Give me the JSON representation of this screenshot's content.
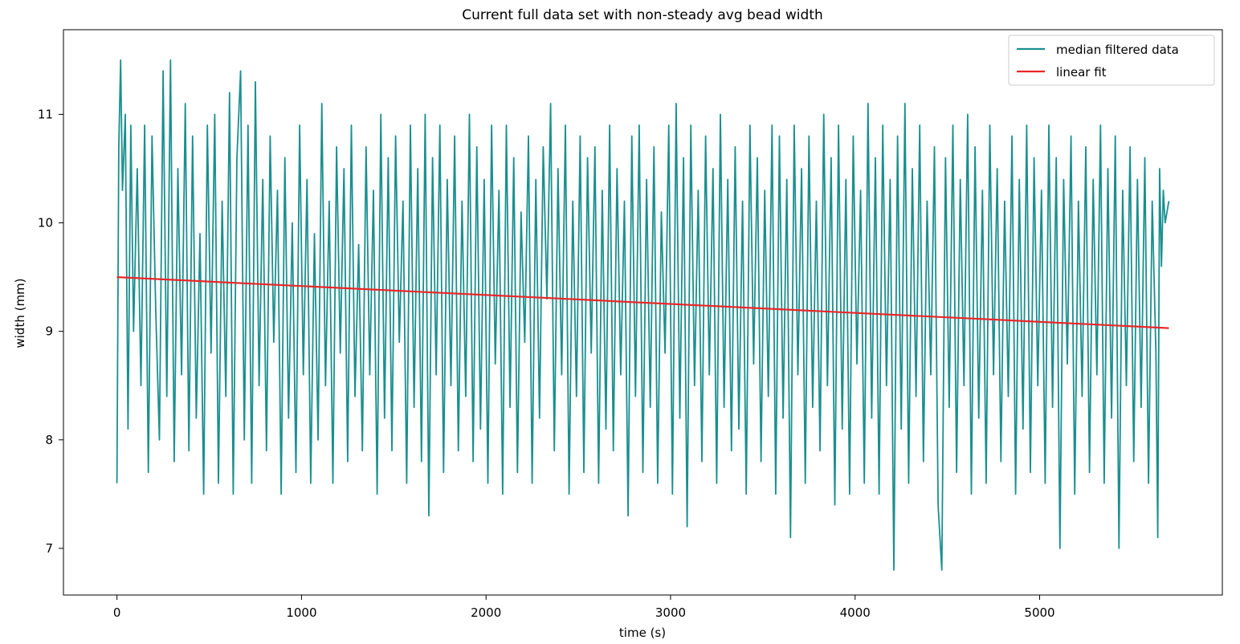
{
  "chart_data": {
    "type": "line",
    "title": "Current full data set with non-steady avg bead width",
    "xlabel": "time (s)",
    "ylabel": "width (mm)",
    "xlim": [
      -290,
      5990
    ],
    "ylim": [
      6.57,
      11.78
    ],
    "xticks": [
      0,
      1000,
      2000,
      3000,
      4000,
      5000
    ],
    "yticks": [
      7,
      8,
      9,
      10,
      11
    ],
    "xtick_labels": [
      "0",
      "1000",
      "2000",
      "3000",
      "4000",
      "5000"
    ],
    "ytick_labels": [
      "7",
      "8",
      "9",
      "10",
      "11"
    ],
    "grid": false,
    "legend_position": "top-right",
    "series": [
      {
        "name": "median filtered data",
        "color": "#1a8f8f",
        "x_range": [
          0,
          5700
        ],
        "approx_min": 6.8,
        "approx_max": 11.55,
        "approx_mean": 9.28,
        "points": [
          [
            0,
            7.6
          ],
          [
            10,
            10.7
          ],
          [
            20,
            11.5
          ],
          [
            30,
            10.3
          ],
          [
            45,
            11.0
          ],
          [
            60,
            8.1
          ],
          [
            75,
            10.9
          ],
          [
            90,
            9.0
          ],
          [
            110,
            10.5
          ],
          [
            130,
            8.5
          ],
          [
            150,
            10.9
          ],
          [
            170,
            7.7
          ],
          [
            190,
            10.8
          ],
          [
            210,
            9.2
          ],
          [
            230,
            8.0
          ],
          [
            250,
            11.4
          ],
          [
            270,
            8.4
          ],
          [
            290,
            11.5
          ],
          [
            310,
            7.8
          ],
          [
            330,
            10.5
          ],
          [
            350,
            8.6
          ],
          [
            370,
            11.1
          ],
          [
            390,
            7.9
          ],
          [
            410,
            10.8
          ],
          [
            430,
            8.2
          ],
          [
            450,
            9.9
          ],
          [
            470,
            7.5
          ],
          [
            490,
            10.9
          ],
          [
            510,
            8.8
          ],
          [
            530,
            11.0
          ],
          [
            550,
            7.6
          ],
          [
            570,
            10.2
          ],
          [
            590,
            8.4
          ],
          [
            610,
            11.2
          ],
          [
            630,
            7.5
          ],
          [
            650,
            10.6
          ],
          [
            670,
            11.4
          ],
          [
            690,
            8.0
          ],
          [
            710,
            10.9
          ],
          [
            730,
            7.6
          ],
          [
            750,
            11.3
          ],
          [
            770,
            8.5
          ],
          [
            790,
            10.4
          ],
          [
            810,
            7.9
          ],
          [
            830,
            10.8
          ],
          [
            850,
            8.9
          ],
          [
            870,
            10.3
          ],
          [
            890,
            7.5
          ],
          [
            910,
            10.6
          ],
          [
            930,
            8.2
          ],
          [
            950,
            10.0
          ],
          [
            970,
            7.7
          ],
          [
            990,
            10.9
          ],
          [
            1010,
            8.6
          ],
          [
            1030,
            10.4
          ],
          [
            1050,
            7.6
          ],
          [
            1070,
            9.9
          ],
          [
            1090,
            8.0
          ],
          [
            1110,
            11.1
          ],
          [
            1130,
            8.5
          ],
          [
            1150,
            10.2
          ],
          [
            1170,
            7.6
          ],
          [
            1190,
            10.7
          ],
          [
            1210,
            8.8
          ],
          [
            1230,
            10.5
          ],
          [
            1250,
            7.8
          ],
          [
            1270,
            10.9
          ],
          [
            1290,
            8.4
          ],
          [
            1310,
            9.8
          ],
          [
            1330,
            7.9
          ],
          [
            1350,
            10.7
          ],
          [
            1370,
            8.6
          ],
          [
            1390,
            10.3
          ],
          [
            1410,
            7.5
          ],
          [
            1430,
            11.0
          ],
          [
            1450,
            8.2
          ],
          [
            1470,
            10.6
          ],
          [
            1490,
            7.9
          ],
          [
            1510,
            10.8
          ],
          [
            1530,
            8.9
          ],
          [
            1550,
            10.2
          ],
          [
            1570,
            7.6
          ],
          [
            1590,
            10.9
          ],
          [
            1610,
            8.3
          ],
          [
            1630,
            10.5
          ],
          [
            1650,
            7.8
          ],
          [
            1670,
            11.0
          ],
          [
            1690,
            7.3
          ],
          [
            1710,
            10.6
          ],
          [
            1730,
            8.6
          ],
          [
            1750,
            10.9
          ],
          [
            1770,
            7.7
          ],
          [
            1790,
            10.4
          ],
          [
            1810,
            8.5
          ],
          [
            1830,
            10.8
          ],
          [
            1850,
            7.9
          ],
          [
            1870,
            10.2
          ],
          [
            1890,
            8.4
          ],
          [
            1910,
            11.0
          ],
          [
            1930,
            7.8
          ],
          [
            1950,
            10.7
          ],
          [
            1970,
            8.1
          ],
          [
            1990,
            10.4
          ],
          [
            2010,
            7.6
          ],
          [
            2030,
            10.9
          ],
          [
            2050,
            8.7
          ],
          [
            2070,
            10.3
          ],
          [
            2090,
            7.5
          ],
          [
            2110,
            10.9
          ],
          [
            2130,
            8.3
          ],
          [
            2150,
            10.6
          ],
          [
            2170,
            7.7
          ],
          [
            2190,
            10.1
          ],
          [
            2210,
            8.9
          ],
          [
            2230,
            10.8
          ],
          [
            2250,
            7.6
          ],
          [
            2270,
            10.4
          ],
          [
            2290,
            8.2
          ],
          [
            2310,
            10.7
          ],
          [
            2330,
            9.3
          ],
          [
            2350,
            11.1
          ],
          [
            2370,
            7.9
          ],
          [
            2390,
            10.5
          ],
          [
            2410,
            8.6
          ],
          [
            2430,
            10.9
          ],
          [
            2450,
            7.5
          ],
          [
            2470,
            10.2
          ],
          [
            2490,
            8.4
          ],
          [
            2510,
            10.8
          ],
          [
            2530,
            7.7
          ],
          [
            2550,
            10.6
          ],
          [
            2570,
            8.8
          ],
          [
            2590,
            10.7
          ],
          [
            2610,
            7.6
          ],
          [
            2630,
            10.3
          ],
          [
            2650,
            8.1
          ],
          [
            2670,
            10.9
          ],
          [
            2690,
            7.9
          ],
          [
            2710,
            10.5
          ],
          [
            2730,
            8.6
          ],
          [
            2750,
            10.2
          ],
          [
            2770,
            7.3
          ],
          [
            2790,
            10.8
          ],
          [
            2810,
            8.4
          ],
          [
            2830,
            10.9
          ],
          [
            2850,
            7.7
          ],
          [
            2870,
            10.4
          ],
          [
            2890,
            8.3
          ],
          [
            2910,
            10.7
          ],
          [
            2930,
            7.6
          ],
          [
            2950,
            10.1
          ],
          [
            2970,
            8.8
          ],
          [
            2990,
            10.9
          ],
          [
            3010,
            7.5
          ],
          [
            3030,
            11.1
          ],
          [
            3050,
            8.2
          ],
          [
            3070,
            10.6
          ],
          [
            3090,
            7.2
          ],
          [
            3110,
            10.9
          ],
          [
            3130,
            8.5
          ],
          [
            3150,
            10.3
          ],
          [
            3170,
            7.8
          ],
          [
            3190,
            10.8
          ],
          [
            3210,
            8.6
          ],
          [
            3230,
            10.5
          ],
          [
            3250,
            7.6
          ],
          [
            3270,
            11.0
          ],
          [
            3290,
            8.3
          ],
          [
            3310,
            10.4
          ],
          [
            3330,
            7.9
          ],
          [
            3350,
            10.7
          ],
          [
            3370,
            8.1
          ],
          [
            3390,
            10.2
          ],
          [
            3410,
            7.5
          ],
          [
            3430,
            10.9
          ],
          [
            3450,
            8.7
          ],
          [
            3470,
            10.6
          ],
          [
            3490,
            7.8
          ],
          [
            3510,
            10.3
          ],
          [
            3530,
            8.4
          ],
          [
            3550,
            10.9
          ],
          [
            3570,
            7.5
          ],
          [
            3590,
            10.8
          ],
          [
            3610,
            8.2
          ],
          [
            3630,
            10.4
          ],
          [
            3650,
            7.1
          ],
          [
            3670,
            10.9
          ],
          [
            3690,
            8.6
          ],
          [
            3710,
            10.5
          ],
          [
            3730,
            7.6
          ],
          [
            3750,
            10.8
          ],
          [
            3770,
            8.3
          ],
          [
            3790,
            10.2
          ],
          [
            3810,
            7.9
          ],
          [
            3830,
            11.0
          ],
          [
            3850,
            8.5
          ],
          [
            3870,
            10.6
          ],
          [
            3890,
            7.4
          ],
          [
            3910,
            10.9
          ],
          [
            3930,
            8.1
          ],
          [
            3950,
            10.4
          ],
          [
            3970,
            7.5
          ],
          [
            3990,
            10.8
          ],
          [
            4010,
            8.7
          ],
          [
            4030,
            10.3
          ],
          [
            4050,
            7.6
          ],
          [
            4070,
            11.1
          ],
          [
            4090,
            8.2
          ],
          [
            4110,
            10.6
          ],
          [
            4130,
            7.5
          ],
          [
            4150,
            10.9
          ],
          [
            4170,
            8.5
          ],
          [
            4190,
            10.4
          ],
          [
            4210,
            6.8
          ],
          [
            4230,
            10.8
          ],
          [
            4250,
            8.1
          ],
          [
            4270,
            11.1
          ],
          [
            4290,
            7.6
          ],
          [
            4310,
            10.5
          ],
          [
            4330,
            8.4
          ],
          [
            4350,
            10.9
          ],
          [
            4370,
            7.8
          ],
          [
            4390,
            10.2
          ],
          [
            4410,
            8.6
          ],
          [
            4430,
            10.7
          ],
          [
            4450,
            7.4
          ],
          [
            4470,
            6.8
          ],
          [
            4490,
            10.6
          ],
          [
            4510,
            8.3
          ],
          [
            4530,
            10.9
          ],
          [
            4550,
            7.7
          ],
          [
            4570,
            10.4
          ],
          [
            4590,
            8.5
          ],
          [
            4610,
            11.0
          ],
          [
            4630,
            7.5
          ],
          [
            4650,
            10.7
          ],
          [
            4670,
            8.2
          ],
          [
            4690,
            10.3
          ],
          [
            4710,
            7.6
          ],
          [
            4730,
            10.9
          ],
          [
            4750,
            8.6
          ],
          [
            4770,
            10.5
          ],
          [
            4790,
            7.8
          ],
          [
            4810,
            10.2
          ],
          [
            4830,
            8.4
          ],
          [
            4850,
            10.8
          ],
          [
            4870,
            7.5
          ],
          [
            4890,
            10.4
          ],
          [
            4910,
            8.1
          ],
          [
            4930,
            10.9
          ],
          [
            4950,
            7.7
          ],
          [
            4970,
            10.6
          ],
          [
            4990,
            8.5
          ],
          [
            5010,
            10.3
          ],
          [
            5030,
            7.6
          ],
          [
            5050,
            10.9
          ],
          [
            5070,
            8.3
          ],
          [
            5090,
            10.6
          ],
          [
            5110,
            7.0
          ],
          [
            5130,
            10.4
          ],
          [
            5150,
            8.7
          ],
          [
            5170,
            10.8
          ],
          [
            5190,
            7.5
          ],
          [
            5210,
            10.2
          ],
          [
            5230,
            8.4
          ],
          [
            5250,
            10.7
          ],
          [
            5270,
            7.7
          ],
          [
            5290,
            10.4
          ],
          [
            5310,
            8.6
          ],
          [
            5330,
            10.9
          ],
          [
            5350,
            7.6
          ],
          [
            5370,
            10.5
          ],
          [
            5390,
            8.2
          ],
          [
            5410,
            10.8
          ],
          [
            5430,
            7.0
          ],
          [
            5450,
            10.3
          ],
          [
            5470,
            8.5
          ],
          [
            5490,
            10.7
          ],
          [
            5510,
            7.8
          ],
          [
            5530,
            10.4
          ],
          [
            5550,
            8.3
          ],
          [
            5570,
            10.6
          ],
          [
            5590,
            7.6
          ],
          [
            5610,
            10.2
          ],
          [
            5630,
            8.8
          ],
          [
            5640,
            7.1
          ],
          [
            5650,
            10.5
          ],
          [
            5660,
            9.6
          ],
          [
            5670,
            10.3
          ],
          [
            5680,
            10.0
          ],
          [
            5700,
            10.2
          ]
        ]
      },
      {
        "name": "linear fit",
        "color": "#e8282b",
        "points": [
          [
            0,
            9.5
          ],
          [
            5700,
            9.03
          ]
        ]
      }
    ]
  }
}
